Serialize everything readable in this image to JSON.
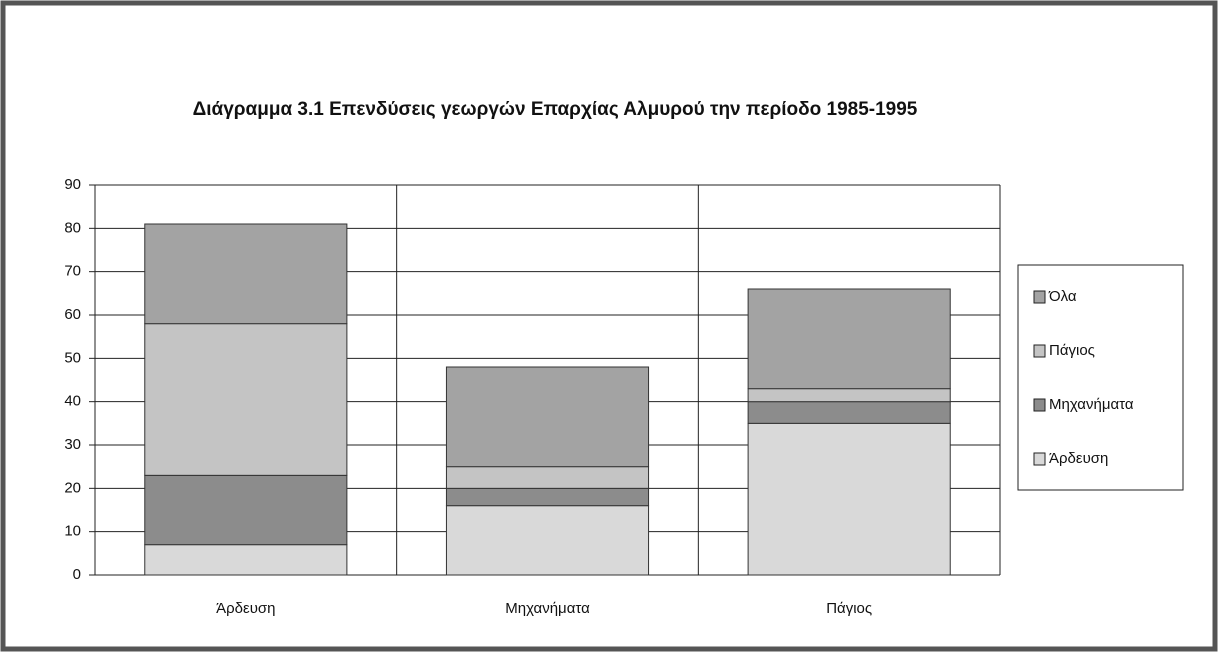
{
  "chart_data": {
    "type": "stacked_bar",
    "title": "Διάγραμμα 3.1  Επενδύσεις γεωργών Επαρχίας Αλμυρού την περίοδο 1985-1995",
    "categories": [
      "Άρδευση",
      "Μηχανήματα",
      "Πάγιος"
    ],
    "series": [
      {
        "name": "Άρδευση",
        "color": "#d9d9d9",
        "values": [
          7,
          16,
          35
        ]
      },
      {
        "name": "Μηχανήματα",
        "color": "#8c8c8c",
        "values": [
          16,
          4,
          5
        ]
      },
      {
        "name": "Πάγιος",
        "color": "#c4c4c4",
        "values": [
          35,
          5,
          3
        ]
      },
      {
        "name": "Όλα",
        "color": "#a3a3a3",
        "values": [
          23,
          23,
          23
        ]
      }
    ],
    "ylim": [
      0,
      90
    ],
    "yticks": [
      0,
      10,
      20,
      30,
      40,
      50,
      60,
      70,
      80,
      90
    ],
    "grid": true,
    "legend": "right"
  }
}
